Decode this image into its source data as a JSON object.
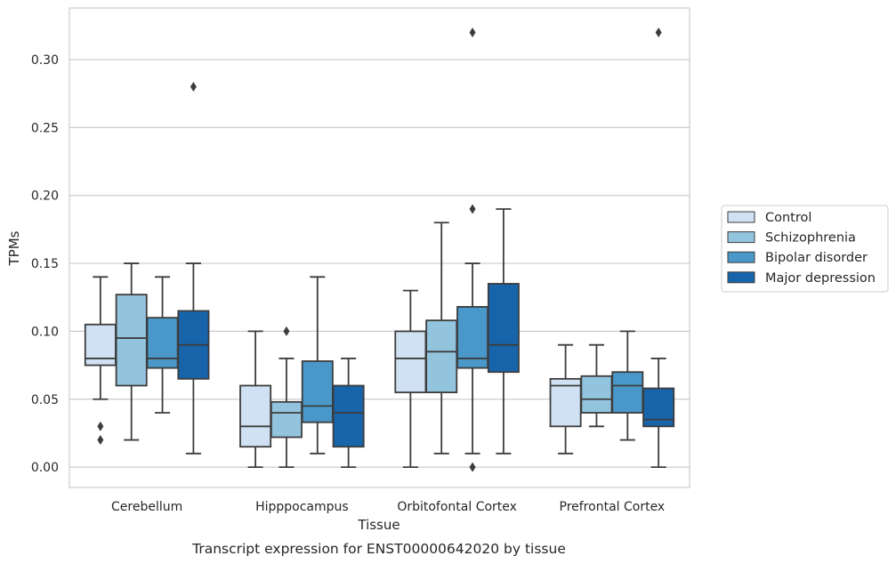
{
  "chart_data": {
    "type": "box",
    "title": "",
    "caption": "Transcript expression for ENST00000642020 by tissue",
    "xlabel": "Tissue",
    "ylabel": "TPMs",
    "ylim": [
      -0.015,
      0.338
    ],
    "yticks": [
      0.0,
      0.05,
      0.1,
      0.15,
      0.2,
      0.25,
      0.3
    ],
    "ytick_labels": [
      "0.00",
      "0.05",
      "0.10",
      "0.15",
      "0.20",
      "0.25",
      "0.30"
    ],
    "grid": "horizontal",
    "legend_position": "right",
    "categories": [
      "Cerebellum",
      "Hipppocampus",
      "Orbitofontal Cortex",
      "Prefrontal Cortex"
    ],
    "series": [
      {
        "name": "Control",
        "color": "#cfe1f2",
        "boxes": [
          {
            "whislo": 0.05,
            "q1": 0.075,
            "med": 0.08,
            "q3": 0.105,
            "whishi": 0.14,
            "fliers": [
              0.03,
              0.02
            ]
          },
          {
            "whislo": 0.0,
            "q1": 0.015,
            "med": 0.03,
            "q3": 0.06,
            "whishi": 0.1,
            "fliers": []
          },
          {
            "whislo": 0.0,
            "q1": 0.055,
            "med": 0.08,
            "q3": 0.1,
            "whishi": 0.13,
            "fliers": []
          },
          {
            "whislo": 0.01,
            "q1": 0.03,
            "med": 0.06,
            "q3": 0.065,
            "whishi": 0.09,
            "fliers": []
          }
        ]
      },
      {
        "name": "Schizophrenia",
        "color": "#93c4de",
        "boxes": [
          {
            "whislo": 0.02,
            "q1": 0.06,
            "med": 0.095,
            "q3": 0.127,
            "whishi": 0.15,
            "fliers": []
          },
          {
            "whislo": 0.0,
            "q1": 0.022,
            "med": 0.04,
            "q3": 0.048,
            "whishi": 0.08,
            "fliers": [
              0.1
            ]
          },
          {
            "whislo": 0.01,
            "q1": 0.055,
            "med": 0.085,
            "q3": 0.108,
            "whishi": 0.18,
            "fliers": []
          },
          {
            "whislo": 0.03,
            "q1": 0.04,
            "med": 0.05,
            "q3": 0.067,
            "whishi": 0.09,
            "fliers": []
          }
        ]
      },
      {
        "name": "Bipolar disorder",
        "color": "#4a98c9",
        "boxes": [
          {
            "whislo": 0.04,
            "q1": 0.073,
            "med": 0.08,
            "q3": 0.11,
            "whishi": 0.14,
            "fliers": []
          },
          {
            "whislo": 0.01,
            "q1": 0.033,
            "med": 0.045,
            "q3": 0.078,
            "whishi": 0.14,
            "fliers": []
          },
          {
            "whislo": 0.01,
            "q1": 0.073,
            "med": 0.08,
            "q3": 0.118,
            "whishi": 0.15,
            "fliers": [
              0.19,
              0.0,
              0.32
            ]
          },
          {
            "whislo": 0.02,
            "q1": 0.04,
            "med": 0.06,
            "q3": 0.07,
            "whishi": 0.1,
            "fliers": []
          }
        ]
      },
      {
        "name": "Major depression",
        "color": "#1764ab",
        "boxes": [
          {
            "whislo": 0.01,
            "q1": 0.065,
            "med": 0.09,
            "q3": 0.115,
            "whishi": 0.15,
            "fliers": [
              0.28
            ]
          },
          {
            "whislo": 0.0,
            "q1": 0.015,
            "med": 0.04,
            "q3": 0.06,
            "whishi": 0.08,
            "fliers": []
          },
          {
            "whislo": 0.01,
            "q1": 0.07,
            "med": 0.09,
            "q3": 0.135,
            "whishi": 0.19,
            "fliers": []
          },
          {
            "whislo": 0.0,
            "q1": 0.03,
            "med": 0.035,
            "q3": 0.058,
            "whishi": 0.08,
            "fliers": [
              0.32
            ]
          }
        ]
      }
    ]
  }
}
